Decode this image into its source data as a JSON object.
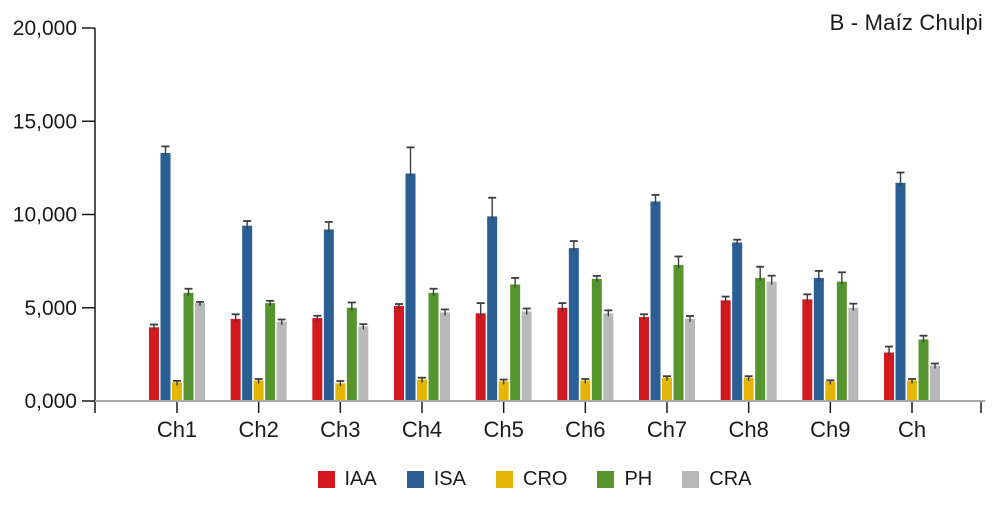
{
  "chart_data": {
    "type": "bar",
    "title": "B - Maíz Chulpi",
    "categories": [
      "Ch1",
      "Ch2",
      "Ch3",
      "Ch4",
      "Ch5",
      "Ch6",
      "Ch7",
      "Ch8",
      "Ch9",
      "Ch"
    ],
    "series": [
      {
        "name": "IAA",
        "color": "#D2191F",
        "values": [
          3950,
          4400,
          4450,
          5100,
          4700,
          5000,
          4500,
          5400,
          5450,
          2600
        ],
        "errors": [
          150,
          250,
          120,
          100,
          550,
          250,
          150,
          200,
          270,
          320
        ]
      },
      {
        "name": "ISA",
        "color": "#2B5F94",
        "values": [
          13300,
          9400,
          9200,
          12200,
          9900,
          8200,
          10700,
          8500,
          6600,
          11700
        ],
        "errors": [
          350,
          250,
          400,
          1400,
          1000,
          375,
          350,
          150,
          375,
          550
        ]
      },
      {
        "name": "CRO",
        "color": "#E3B505",
        "values": [
          1000,
          1100,
          950,
          1150,
          1050,
          1100,
          1250,
          1250,
          1050,
          1100
        ],
        "errors": [
          80,
          80,
          120,
          100,
          100,
          80,
          80,
          80,
          60,
          80
        ]
      },
      {
        "name": "PH",
        "color": "#56952E",
        "values": [
          5800,
          5250,
          5000,
          5800,
          6250,
          6550,
          7300,
          6600,
          6400,
          3300
        ],
        "errors": [
          220,
          120,
          280,
          220,
          350,
          160,
          450,
          600,
          500,
          200
        ]
      },
      {
        "name": "CRA",
        "color": "#B9B9B9",
        "values": [
          5250,
          4250,
          4000,
          4750,
          4800,
          4700,
          4400,
          6400,
          5000,
          1900
        ],
        "errors": [
          60,
          120,
          120,
          160,
          160,
          160,
          160,
          320,
          220,
          110
        ]
      }
    ],
    "ylim": [
      0,
      20000
    ],
    "ytick_values": [
      0,
      5000,
      10000,
      15000,
      20000
    ],
    "ytick_labels": [
      "0,000",
      "5,000",
      "10,000",
      "15,000",
      "20,000"
    ],
    "grid": false,
    "legend_position": "bottom",
    "colors": {
      "axis": "#1a1a1a",
      "baseline": "#a9a9a9",
      "error_bar": "#3d3d3d",
      "text": "#1a1a1a"
    }
  }
}
